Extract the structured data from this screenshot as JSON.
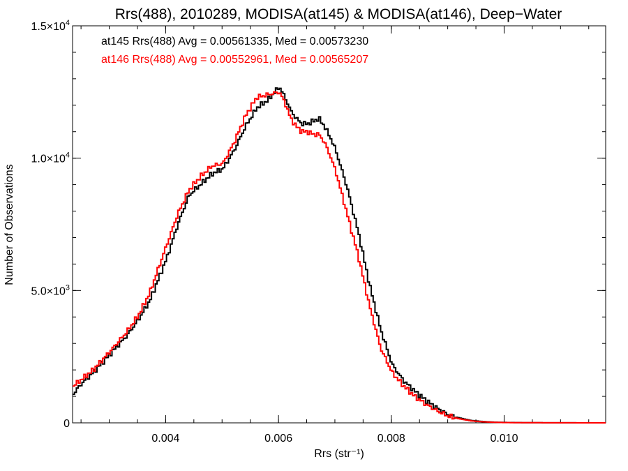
{
  "chart_data": {
    "type": "line",
    "title": "Rrs(488), 2010289, MODISA(at145) & MODISA(at146), Deep−Water",
    "xlabel": "Rrs (str⁻¹)",
    "ylabel": "Number of Observations",
    "xlim": [
      0.00235,
      0.0118
    ],
    "ylim": [
      0,
      15000
    ],
    "x_ticks": [
      {
        "value": 0.004,
        "label": "0.004"
      },
      {
        "value": 0.006,
        "label": "0.006"
      },
      {
        "value": 0.008,
        "label": "0.008"
      },
      {
        "value": 0.01,
        "label": "0.010"
      }
    ],
    "x_minor_step": 0.0005,
    "y_ticks": [
      {
        "value": 0,
        "mant": "0",
        "exp": ""
      },
      {
        "value": 5000,
        "mant": "5.0×10",
        "exp": "3"
      },
      {
        "value": 10000,
        "mant": "1.0×10",
        "exp": "4"
      },
      {
        "value": 15000,
        "mant": "1.5×10",
        "exp": "4"
      }
    ],
    "y_minor_step": 1000,
    "grid": false,
    "legend_position": "top-left",
    "series": [
      {
        "name": "at145",
        "color": "#000000",
        "legend": "at145 Rrs(488) Avg = 0.00561335, Med = 0.00573230",
        "x": [
          0.00235,
          0.0025,
          0.0027,
          0.003,
          0.0033,
          0.0035,
          0.0037,
          0.004,
          0.0042,
          0.0044,
          0.0046,
          0.0048,
          0.005,
          0.0052,
          0.0054,
          0.0056,
          0.0058,
          0.006,
          0.0061,
          0.0062,
          0.0063,
          0.0064,
          0.0065,
          0.0066,
          0.0067,
          0.0068,
          0.0069,
          0.007,
          0.0072,
          0.0074,
          0.0076,
          0.0078,
          0.008,
          0.0082,
          0.0084,
          0.0086,
          0.0088,
          0.009,
          0.0092,
          0.0094,
          0.0096,
          0.0098,
          0.01,
          0.0105,
          0.011,
          0.0118
        ],
        "y": [
          1100,
          1500,
          1900,
          2600,
          3300,
          3900,
          4600,
          6200,
          7500,
          8600,
          9000,
          9400,
          9600,
          10300,
          11200,
          11900,
          12200,
          12700,
          12300,
          11800,
          11500,
          11300,
          11300,
          11400,
          11500,
          11200,
          10800,
          10300,
          8900,
          7200,
          5200,
          3500,
          2200,
          1600,
          1200,
          850,
          550,
          300,
          180,
          90,
          50,
          25,
          15,
          5,
          2,
          0
        ]
      },
      {
        "name": "at146",
        "color": "#ff0000",
        "legend": "at146 Rrs(488) Avg = 0.00552961, Med = 0.00565207",
        "x": [
          0.00235,
          0.0025,
          0.0027,
          0.003,
          0.0033,
          0.0035,
          0.0037,
          0.004,
          0.0042,
          0.0044,
          0.0046,
          0.0048,
          0.005,
          0.0052,
          0.0054,
          0.0056,
          0.0058,
          0.006,
          0.0061,
          0.0062,
          0.0063,
          0.0064,
          0.0065,
          0.0066,
          0.0067,
          0.0068,
          0.0069,
          0.007,
          0.0072,
          0.0074,
          0.0076,
          0.0078,
          0.008,
          0.0082,
          0.0084,
          0.0086,
          0.0088,
          0.009,
          0.0092,
          0.0094,
          0.0096,
          0.0098,
          0.01,
          0.0105,
          0.011,
          0.0118
        ],
        "y": [
          1400,
          1650,
          2000,
          2700,
          3450,
          4050,
          4900,
          6700,
          7900,
          8800,
          9300,
          9700,
          9800,
          10600,
          11600,
          12300,
          12400,
          12500,
          12100,
          11500,
          11200,
          11000,
          11000,
          10900,
          10900,
          10600,
          10100,
          9500,
          7900,
          6300,
          4400,
          2800,
          1900,
          1400,
          1000,
          700,
          450,
          250,
          150,
          75,
          40,
          20,
          10,
          5,
          2,
          0
        ]
      }
    ]
  }
}
